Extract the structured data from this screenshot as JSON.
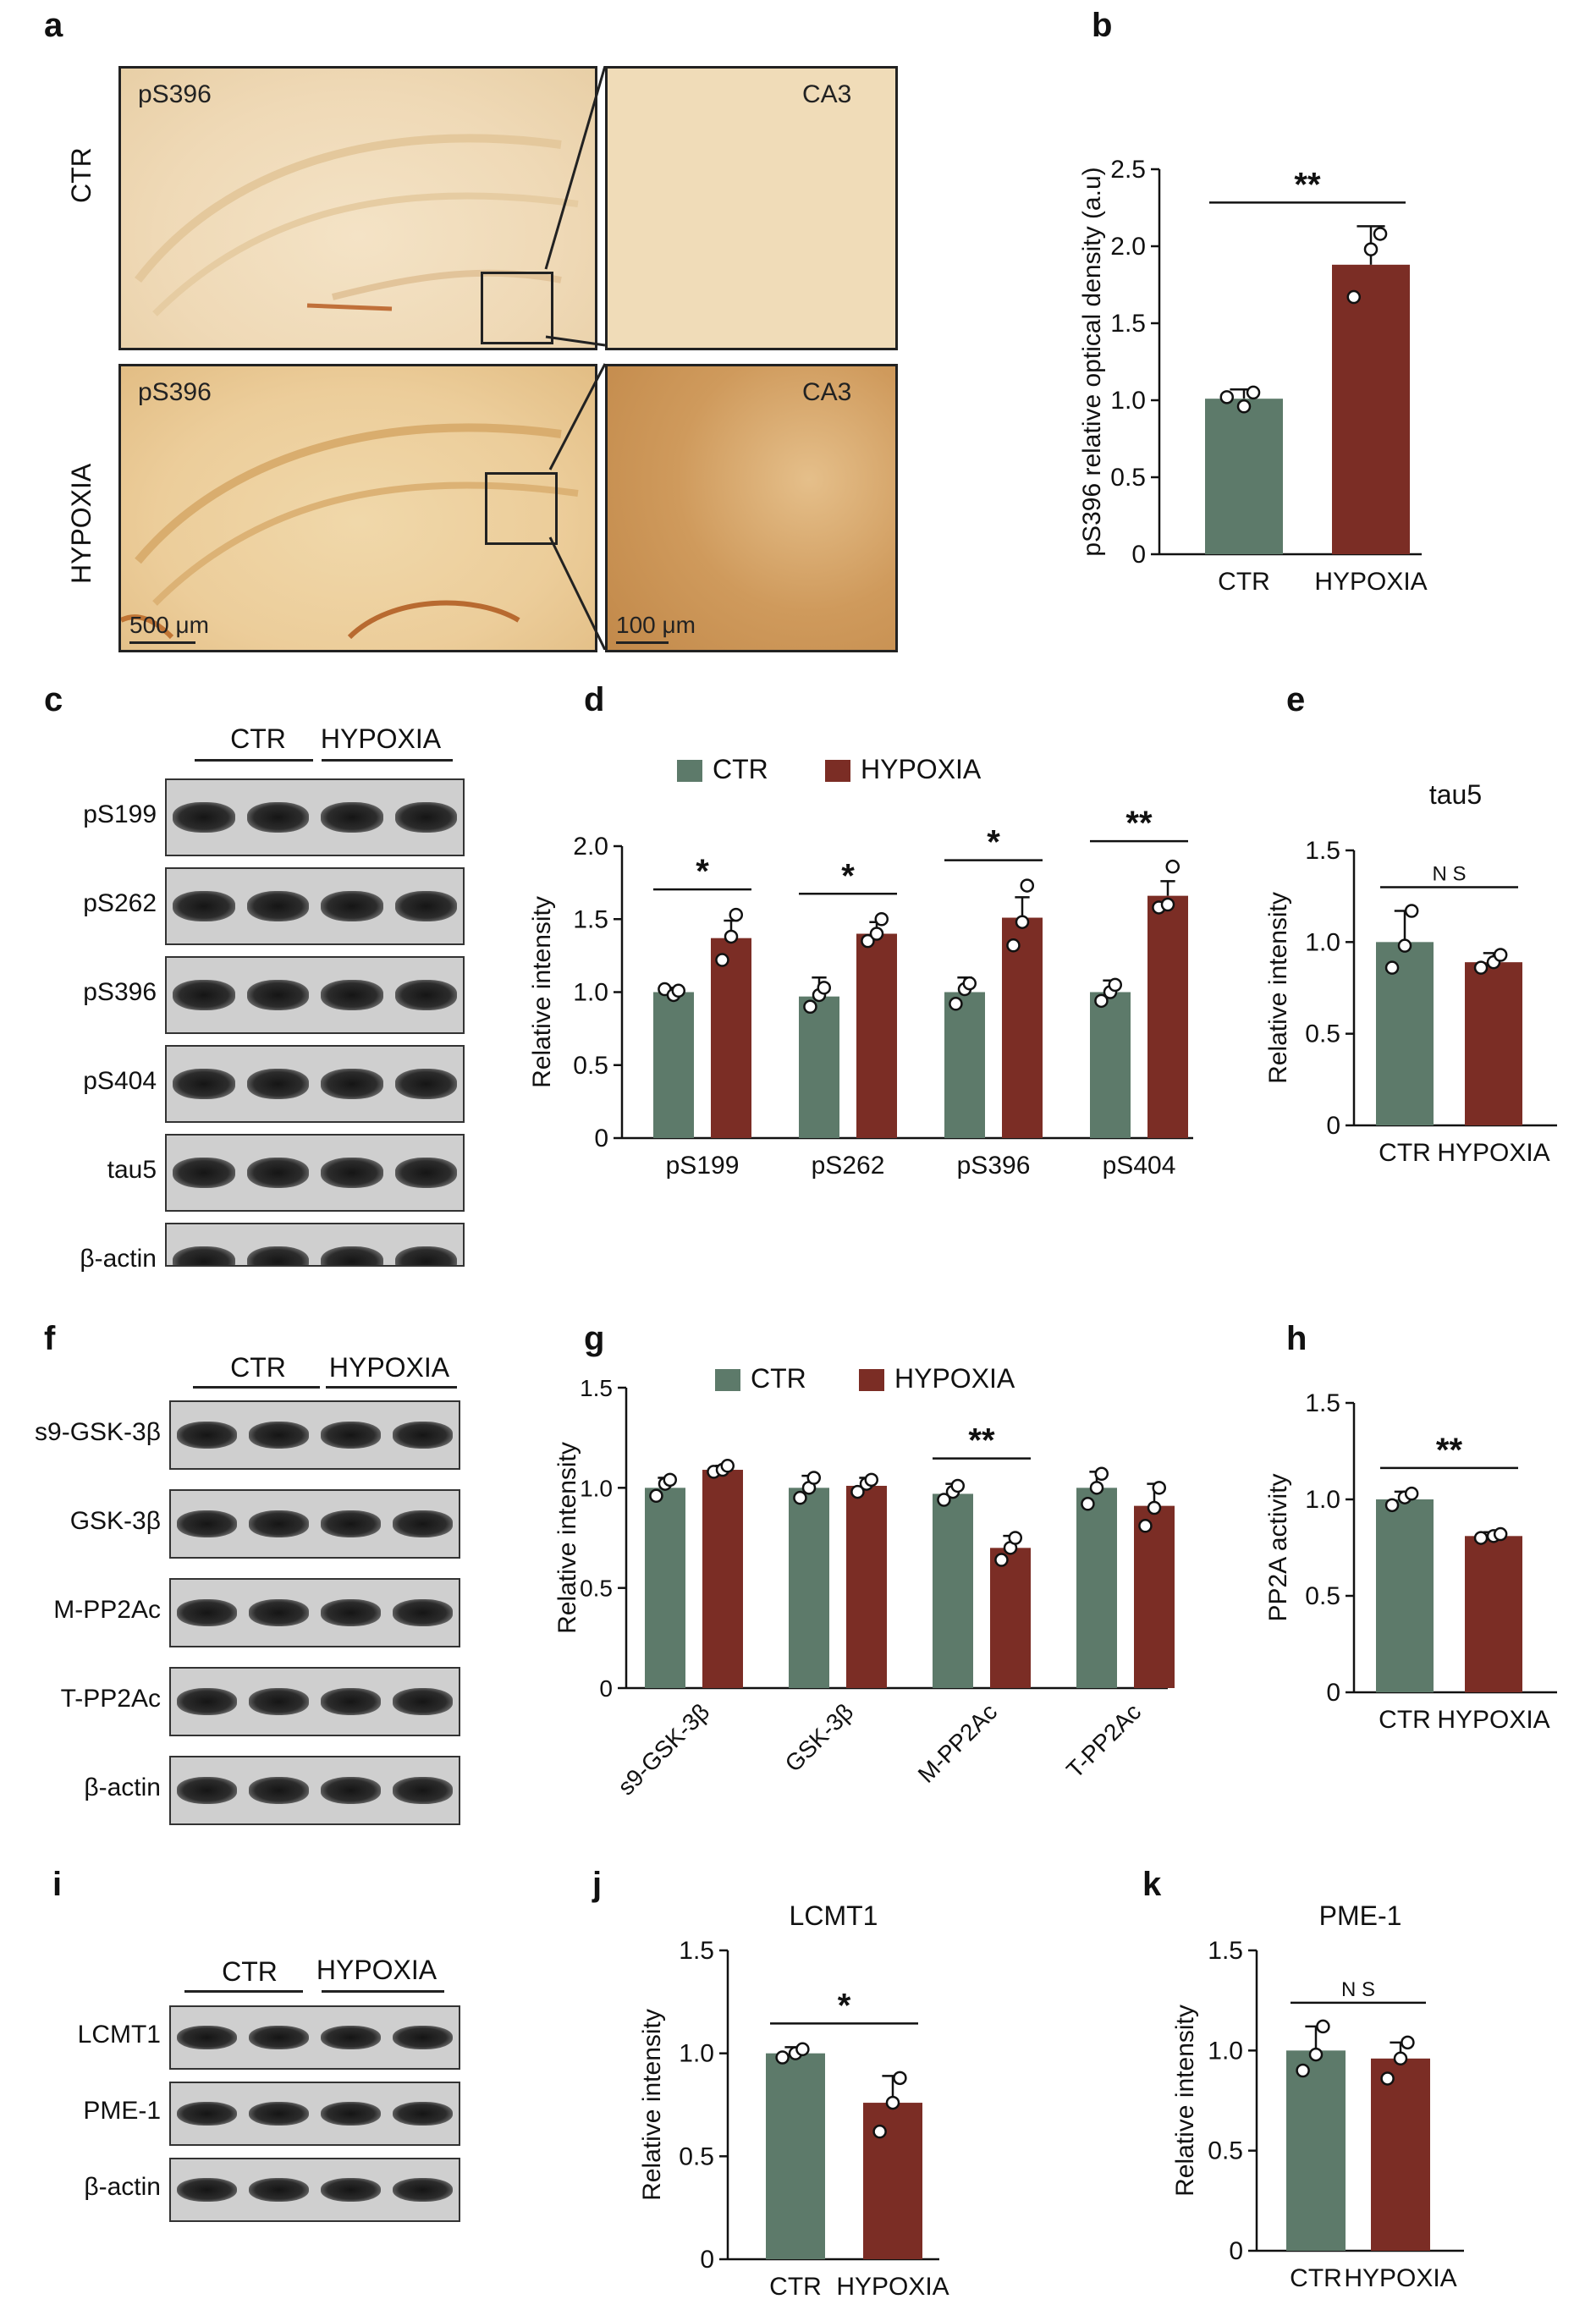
{
  "panel_letters": {
    "a": "a",
    "b": "b",
    "c": "c",
    "d": "d",
    "e": "e",
    "f": "f",
    "g": "g",
    "h": "h",
    "i": "i",
    "j": "j",
    "k": "k"
  },
  "colors": {
    "ctr": "#5d7a6a",
    "hypoxia": "#7b2d25",
    "tissue_light": "#f2dfbf",
    "tissue_dark": "#c98f4f"
  },
  "panel_a": {
    "row_labels": [
      "CTR",
      "HYPOXIA"
    ],
    "stain_label": "pS396",
    "region_label": "CA3",
    "scale_overview": "500 μm",
    "scale_zoom": "100 μm"
  },
  "blot_c": {
    "groups": [
      "CTR",
      "HYPOXIA"
    ],
    "rows": [
      "pS199",
      "pS262",
      "pS396",
      "pS404",
      "tau5",
      "β-actin"
    ]
  },
  "blot_f": {
    "groups": [
      "CTR",
      "HYPOXIA"
    ],
    "rows": [
      "s9-GSK-3β",
      "GSK-3β",
      "M-PP2Ac",
      "T-PP2Ac",
      "β-actin"
    ]
  },
  "blot_i": {
    "groups": [
      "CTR",
      "HYPOXIA"
    ],
    "rows": [
      "LCMT1",
      "PME-1",
      "β-actin"
    ]
  },
  "chart_data": [
    {
      "panel": "b",
      "type": "bar",
      "title": "",
      "categories": [
        "CTR",
        "HYPOXIA"
      ],
      "values": [
        1.01,
        1.88
      ],
      "errors": [
        0.06,
        0.25
      ],
      "points": [
        [
          1.02,
          0.96,
          1.05
        ],
        [
          1.67,
          1.98,
          2.08
        ]
      ],
      "ylabel": "pS396 relative optical density (a.u)",
      "ylim": [
        0,
        2.5
      ],
      "yticks": [
        "0",
        "0.5",
        "1.0",
        "1.5",
        "2.0",
        "2.5"
      ],
      "significance": [
        {
          "from": 0,
          "to": 1,
          "label": "**"
        }
      ]
    },
    {
      "panel": "d",
      "type": "bar",
      "title": "",
      "categories": [
        "pS199",
        "pS262",
        "pS396",
        "pS404"
      ],
      "series": [
        {
          "name": "CTR",
          "values": [
            1.0,
            0.97,
            1.0,
            1.0
          ],
          "errors": [
            0.03,
            0.13,
            0.1,
            0.08
          ],
          "points": [
            [
              1.02,
              0.98,
              1.01
            ],
            [
              0.9,
              0.98,
              1.03
            ],
            [
              0.92,
              1.02,
              1.06
            ],
            [
              0.94,
              1.0,
              1.05
            ]
          ]
        },
        {
          "name": "HYPOXIA",
          "values": [
            1.37,
            1.4,
            1.51,
            1.66
          ],
          "errors": [
            0.12,
            0.08,
            0.14,
            0.1
          ],
          "points": [
            [
              1.22,
              1.38,
              1.53
            ],
            [
              1.35,
              1.4,
              1.5
            ],
            [
              1.32,
              1.48,
              1.73
            ],
            [
              1.58,
              1.6,
              1.86
            ]
          ]
        }
      ],
      "ylabel": "Relative intensity",
      "ylim": [
        0,
        2.0
      ],
      "yticks": [
        "0",
        "0.5",
        "1.0",
        "1.5",
        "2.0"
      ],
      "significance": [
        {
          "group": 0,
          "label": "*"
        },
        {
          "group": 1,
          "label": "*"
        },
        {
          "group": 2,
          "label": "*"
        },
        {
          "group": 3,
          "label": "**"
        }
      ]
    },
    {
      "panel": "e",
      "type": "bar",
      "title": "tau5",
      "categories": [
        "CTR",
        "HYPOXIA"
      ],
      "values": [
        1.0,
        0.89
      ],
      "errors": [
        0.17,
        0.05
      ],
      "points": [
        [
          0.86,
          0.98,
          1.17
        ],
        [
          0.86,
          0.89,
          0.93
        ]
      ],
      "ylabel": "Relative intensity",
      "ylim": [
        0,
        1.5
      ],
      "yticks": [
        "0",
        "0.5",
        "1.0",
        "1.5"
      ],
      "significance": [
        {
          "from": 0,
          "to": 1,
          "label": "N S"
        }
      ]
    },
    {
      "panel": "g",
      "type": "bar",
      "title": "",
      "categories": [
        "s9-GSK-3β",
        "GSK-3β",
        "M-PP2Ac",
        "T-PP2Ac"
      ],
      "series": [
        {
          "name": "CTR",
          "values": [
            1.0,
            1.0,
            0.97,
            1.0
          ],
          "errors": [
            0.05,
            0.06,
            0.05,
            0.08
          ],
          "points": [
            [
              0.96,
              1.02,
              1.04
            ],
            [
              0.95,
              1.0,
              1.05
            ],
            [
              0.94,
              0.98,
              1.01
            ],
            [
              0.92,
              1.0,
              1.07
            ]
          ]
        },
        {
          "name": "HYPOXIA",
          "values": [
            1.09,
            1.01,
            0.7,
            0.91
          ],
          "errors": [
            0.02,
            0.04,
            0.06,
            0.11
          ],
          "points": [
            [
              1.08,
              1.09,
              1.11
            ],
            [
              0.98,
              1.02,
              1.04
            ],
            [
              0.64,
              0.7,
              0.75
            ],
            [
              0.81,
              0.9,
              1.0
            ]
          ]
        }
      ],
      "ylabel": "Relative intensity",
      "ylim": [
        0,
        1.5
      ],
      "yticks": [
        "0",
        "0.5",
        "1.0",
        "1.5"
      ],
      "significance": [
        {
          "group": 2,
          "label": "**"
        }
      ]
    },
    {
      "panel": "h",
      "type": "bar",
      "title": "",
      "categories": [
        "CTR",
        "HYPOXIA"
      ],
      "values": [
        1.0,
        0.81
      ],
      "errors": [
        0.04,
        0.02
      ],
      "points": [
        [
          0.97,
          1.01,
          1.03
        ],
        [
          0.8,
          0.81,
          0.82
        ]
      ],
      "ylabel": "PP2A activity",
      "ylim": [
        0,
        1.5
      ],
      "yticks": [
        "0",
        "0.5",
        "1.0",
        "1.5"
      ],
      "significance": [
        {
          "from": 0,
          "to": 1,
          "label": "**"
        }
      ]
    },
    {
      "panel": "j",
      "type": "bar",
      "title": "LCMT1",
      "categories": [
        "CTR",
        "HYPOXIA"
      ],
      "values": [
        1.0,
        0.76
      ],
      "errors": [
        0.03,
        0.13
      ],
      "points": [
        [
          0.98,
          1.0,
          1.02
        ],
        [
          0.62,
          0.76,
          0.88
        ]
      ],
      "ylabel": "Relative intensity",
      "ylim": [
        0,
        1.5
      ],
      "yticks": [
        "0",
        "0.5",
        "1.0",
        "1.5"
      ],
      "significance": [
        {
          "from": 0,
          "to": 1,
          "label": "*"
        }
      ]
    },
    {
      "panel": "k",
      "type": "bar",
      "title": "PME-1",
      "categories": [
        "CTR",
        "HYPOXIA"
      ],
      "values": [
        1.0,
        0.96
      ],
      "errors": [
        0.12,
        0.08
      ],
      "points": [
        [
          0.9,
          0.98,
          1.12
        ],
        [
          0.86,
          0.96,
          1.04
        ]
      ],
      "ylabel": "Relative intensity",
      "ylim": [
        0,
        1.5
      ],
      "yticks": [
        "0",
        "0.5",
        "1.0",
        "1.5"
      ],
      "significance": [
        {
          "from": 0,
          "to": 1,
          "label": "N S"
        }
      ]
    }
  ]
}
